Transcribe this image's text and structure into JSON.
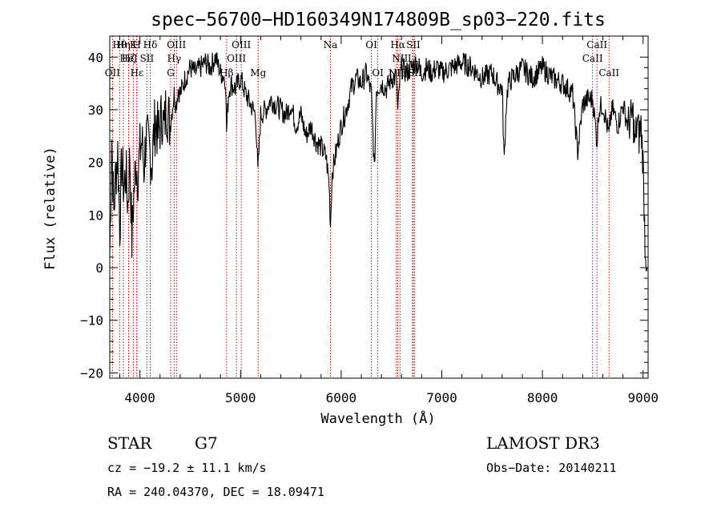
{
  "chart_data": {
    "type": "line",
    "title": "spec−56700−HD160349N174809B_sp03−220.fits",
    "xlabel": "Wavelength (Å)",
    "ylabel": "Flux (relative)",
    "xlim": [
      3700,
      9050
    ],
    "ylim": [
      -21,
      44
    ],
    "xticks": [
      4000,
      5000,
      6000,
      7000,
      8000,
      9000
    ],
    "yticks": [
      -20,
      -10,
      0,
      10,
      20,
      30,
      40
    ],
    "grid": false,
    "series": [
      {
        "x": [
          3700,
          3720,
          3740,
          3760,
          3780,
          3800,
          3820,
          3840,
          3860,
          3880,
          3900,
          3920,
          3940,
          3960,
          3980,
          4000,
          4020,
          4040,
          4060,
          4080,
          4100,
          4120,
          4140,
          4160,
          4180,
          4200,
          4220,
          4240,
          4260,
          4280,
          4300,
          4320,
          4340,
          4360,
          4380,
          4400,
          4450,
          4500,
          4550,
          4600,
          4650,
          4700,
          4750,
          4800,
          4850,
          4861,
          4880,
          4900,
          4950,
          5000,
          5050,
          5100,
          5150,
          5172,
          5200,
          5250,
          5300,
          5350,
          5400,
          5450,
          5500,
          5550,
          5600,
          5650,
          5700,
          5750,
          5800,
          5850,
          5880,
          5893,
          5910,
          5950,
          6000,
          6050,
          6100,
          6150,
          6200,
          6250,
          6300,
          6330,
          6350,
          6400,
          6450,
          6500,
          6550,
          6563,
          6580,
          6600,
          6650,
          6700,
          6750,
          6800,
          6850,
          6900,
          6950,
          7000,
          7100,
          7200,
          7300,
          7400,
          7500,
          7550,
          7600,
          7620,
          7640,
          7660,
          7700,
          7800,
          7900,
          8000,
          8100,
          8200,
          8300,
          8350,
          8400,
          8450,
          8500,
          8542,
          8560,
          8600,
          8662,
          8680,
          8700,
          8750,
          8800,
          8850,
          8900,
          8920,
          8940,
          8960,
          8980,
          9000,
          9020,
          9040
        ],
        "y": [
          2,
          25,
          10,
          18,
          22,
          8,
          20,
          15,
          18,
          12,
          22,
          5,
          14,
          20,
          18,
          22,
          24,
          19,
          25,
          23,
          22,
          20,
          26,
          28,
          25,
          27,
          29,
          26,
          31,
          29,
          27,
          30,
          33,
          31,
          34,
          33,
          36,
          38,
          37,
          38,
          39,
          38,
          40,
          37,
          36,
          26,
          33,
          35,
          34,
          36,
          33,
          31,
          29,
          18,
          29,
          30,
          32,
          31,
          30,
          29,
          31,
          27,
          29,
          25,
          27,
          24,
          23,
          21,
          16,
          8,
          18,
          22,
          27,
          30,
          34,
          36,
          35,
          37,
          33,
          18,
          34,
          35,
          34,
          36,
          36,
          29,
          35,
          38,
          37,
          38,
          39,
          37,
          38,
          37,
          38,
          37,
          38,
          39,
          38,
          36,
          37,
          35,
          34,
          20,
          31,
          35,
          36,
          38,
          36,
          38,
          36,
          35,
          33,
          22,
          31,
          32,
          32,
          24,
          30,
          31,
          25,
          29,
          30,
          27,
          31,
          27,
          29,
          23,
          28,
          25,
          27,
          20,
          5,
          0
        ]
      }
    ],
    "line_marks": [
      {
        "label": "Hθ",
        "x": 3798,
        "row": 0
      },
      {
        "label": "Hη",
        "x": 3835,
        "row": 0
      },
      {
        "label": "K",
        "x": 3934,
        "row": 0
      },
      {
        "label": "H",
        "x": 3968,
        "row": 0
      },
      {
        "label": "Hδ",
        "x": 4102,
        "row": 0
      },
      {
        "label": "OIII",
        "x": 4363,
        "row": 0
      },
      {
        "label": "OIII",
        "x": 5007,
        "row": 0
      },
      {
        "label": "OI",
        "x": 6300,
        "row": 0
      },
      {
        "label": "Hα",
        "x": 6563,
        "row": 0
      },
      {
        "label": "SII",
        "x": 6717,
        "row": 0
      },
      {
        "label": "CaII",
        "x": 8542,
        "row": 0
      },
      {
        "label": "Hζ",
        "x": 3889,
        "row": 1
      },
      {
        "label": "HeI",
        "x": 3888,
        "row": 1
      },
      {
        "label": "SII",
        "x": 4069,
        "row": 1
      },
      {
        "label": "Hγ",
        "x": 4340,
        "row": 1
      },
      {
        "label": "OIII",
        "x": 4959,
        "row": 1
      },
      {
        "label": "NII",
        "x": 6584,
        "row": 1
      },
      {
        "label": "Li",
        "x": 6708,
        "row": 1
      },
      {
        "label": "CaII",
        "x": 8498,
        "row": 1
      },
      {
        "label": "OII",
        "x": 3727,
        "row": 2
      },
      {
        "label": "Hε",
        "x": 3970,
        "row": 2
      },
      {
        "label": "G",
        "x": 4305,
        "row": 2
      },
      {
        "label": "Hβ",
        "x": 4861,
        "row": 2
      },
      {
        "label": "Mg",
        "x": 5175,
        "row": 2
      },
      {
        "label": "Na",
        "x": 5893,
        "row": 0
      },
      {
        "label": "OI",
        "x": 6364,
        "row": 2
      },
      {
        "label": "NII",
        "x": 6548,
        "row": 2
      },
      {
        "label": "SII",
        "x": 6731,
        "row": 2
      },
      {
        "label": "CaII",
        "x": 8662,
        "row": 2
      }
    ],
    "marker_color": "#cc0000"
  },
  "info": {
    "object_class": "STAR",
    "subclass": "G7",
    "survey": "LAMOST DR3",
    "redshift": "cz = −19.2 ± 11.1 km/s",
    "obs_date": "Obs−Date: 20140211",
    "coords": "RA = 240.04370, DEC =  18.09471"
  }
}
